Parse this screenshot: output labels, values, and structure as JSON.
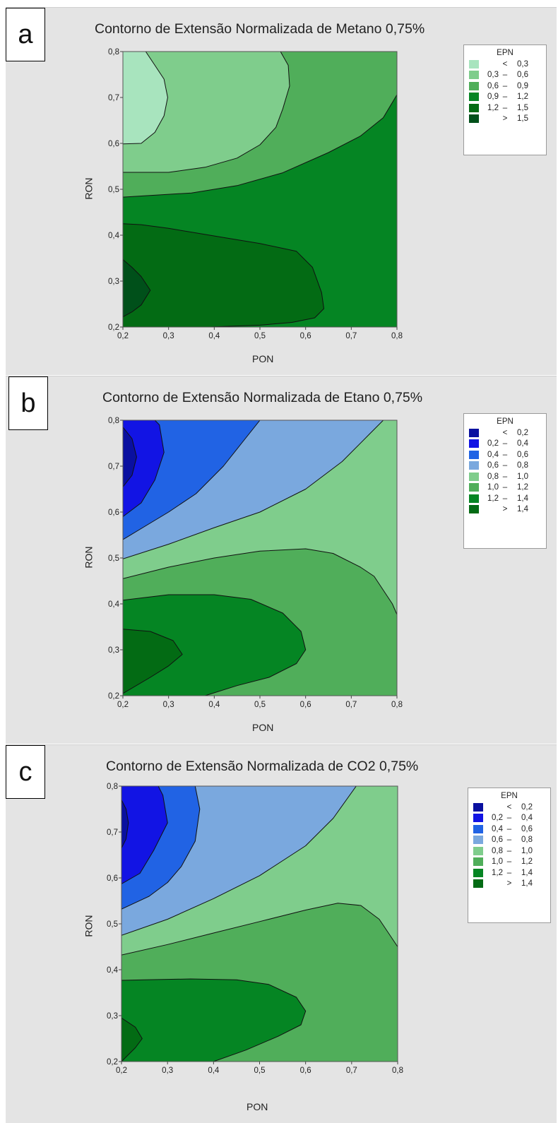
{
  "chart_data": [
    {
      "panel_label": "a",
      "type": "contour",
      "title": "Contorno de Extensão Normalizada de Metano 0,75%",
      "xlabel": "PON",
      "ylabel": "RON",
      "xlim": [
        0.2,
        0.8
      ],
      "ylim": [
        0.2,
        0.8
      ],
      "xticks": [
        "0,2",
        "0,3",
        "0,4",
        "0,5",
        "0,6",
        "0,7",
        "0,8"
      ],
      "yticks": [
        "0,2",
        "0,3",
        "0,4",
        "0,5",
        "0,6",
        "0,7",
        "0,8"
      ],
      "legend_title": "EPN",
      "legend_position": "right",
      "levels": [
        {
          "low": "",
          "op": "<",
          "high": "0,3",
          "color": "#a8e4be"
        },
        {
          "low": "0,3",
          "op": "–",
          "high": "0,6",
          "color": "#7fcd8c"
        },
        {
          "low": "0,6",
          "op": "–",
          "high": "0,9",
          "color": "#50ae5a"
        },
        {
          "low": "0,9",
          "op": "–",
          "high": "1,2",
          "color": "#058523"
        },
        {
          "low": "1,2",
          "op": "–",
          "high": "1,5",
          "color": "#036b14"
        },
        {
          "low": "",
          "op": ">",
          "high": "1,5",
          "color": "#00501a"
        }
      ],
      "regions": [
        {
          "level": 2,
          "poly": [
            [
              0.2,
              0.483
            ],
            [
              0.8,
              0.483
            ],
            [
              0.8,
              0.8
            ],
            [
              0.2,
              0.8
            ]
          ]
        },
        {
          "level": 3,
          "poly": [
            [
              0.2,
              0.2
            ],
            [
              0.8,
              0.2
            ],
            [
              0.8,
              0.706
            ],
            [
              0.77,
              0.656
            ],
            [
              0.72,
              0.616
            ],
            [
              0.65,
              0.58
            ],
            [
              0.55,
              0.536
            ],
            [
              0.45,
              0.508
            ],
            [
              0.35,
              0.492
            ],
            [
              0.25,
              0.486
            ],
            [
              0.2,
              0.483
            ]
          ]
        },
        {
          "level": 1,
          "poly": [
            [
              0.2,
              0.537
            ],
            [
              0.3,
              0.537
            ],
            [
              0.38,
              0.548
            ],
            [
              0.45,
              0.568
            ],
            [
              0.5,
              0.597
            ],
            [
              0.535,
              0.635
            ],
            [
              0.55,
              0.675
            ],
            [
              0.565,
              0.725
            ],
            [
              0.562,
              0.77
            ],
            [
              0.545,
              0.8
            ],
            [
              0.2,
              0.8
            ]
          ]
        },
        {
          "level": 0,
          "poly": [
            [
              0.2,
              0.599
            ],
            [
              0.24,
              0.6
            ],
            [
              0.27,
              0.624
            ],
            [
              0.29,
              0.66
            ],
            [
              0.298,
              0.7
            ],
            [
              0.29,
              0.74
            ],
            [
              0.27,
              0.77
            ],
            [
              0.25,
              0.8
            ],
            [
              0.2,
              0.8
            ]
          ]
        },
        {
          "level": 4,
          "poly": [
            [
              0.2,
              0.2
            ],
            [
              0.39,
              0.2
            ],
            [
              0.5,
              0.204
            ],
            [
              0.57,
              0.21
            ],
            [
              0.62,
              0.22
            ],
            [
              0.64,
              0.24
            ],
            [
              0.635,
              0.275
            ],
            [
              0.615,
              0.33
            ],
            [
              0.58,
              0.365
            ],
            [
              0.5,
              0.382
            ],
            [
              0.42,
              0.395
            ],
            [
              0.36,
              0.405
            ],
            [
              0.3,
              0.415
            ],
            [
              0.24,
              0.423
            ],
            [
              0.2,
              0.425
            ]
          ]
        },
        {
          "level": 5,
          "poly": [
            [
              0.2,
              0.222
            ],
            [
              0.22,
              0.233
            ],
            [
              0.24,
              0.248
            ],
            [
              0.26,
              0.28
            ],
            [
              0.24,
              0.31
            ],
            [
              0.22,
              0.33
            ],
            [
              0.2,
              0.347
            ]
          ]
        }
      ]
    },
    {
      "panel_label": "b",
      "type": "contour",
      "title": "Contorno de Extensão Normalizada de Etano 0,75%",
      "xlabel": "PON",
      "ylabel": "RON",
      "xlim": [
        0.2,
        0.8
      ],
      "ylim": [
        0.2,
        0.8
      ],
      "xticks": [
        "0,2",
        "0,3",
        "0,4",
        "0,5",
        "0,6",
        "0,7",
        "0,8"
      ],
      "yticks": [
        "0,2",
        "0,3",
        "0,4",
        "0,5",
        "0,6",
        "0,7",
        "0,8"
      ],
      "legend_title": "EPN",
      "legend_position": "right",
      "levels": [
        {
          "low": "",
          "op": "<",
          "high": "0,2",
          "color": "#0a10a0"
        },
        {
          "low": "0,2",
          "op": "–",
          "high": "0,4",
          "color": "#1214e4"
        },
        {
          "low": "0,4",
          "op": "–",
          "high": "0,6",
          "color": "#2163e4"
        },
        {
          "low": "0,6",
          "op": "–",
          "high": "0,8",
          "color": "#7aa8de"
        },
        {
          "low": "0,8",
          "op": "–",
          "high": "1,0",
          "color": "#7fcd8c"
        },
        {
          "low": "1,0",
          "op": "–",
          "high": "1,2",
          "color": "#50ae5a"
        },
        {
          "low": "1,2",
          "op": "–",
          "high": "1,4",
          "color": "#058523"
        },
        {
          "low": "",
          "op": ">",
          "high": "1,4",
          "color": "#036b14"
        }
      ],
      "regions": [
        {
          "level": 5,
          "poly": [
            [
              0.2,
              0.2
            ],
            [
              0.8,
              0.2
            ],
            [
              0.8,
              0.8
            ],
            [
              0.2,
              0.8
            ]
          ]
        },
        {
          "level": 4,
          "poly": [
            [
              0.2,
              0.455
            ],
            [
              0.3,
              0.48
            ],
            [
              0.4,
              0.5
            ],
            [
              0.5,
              0.515
            ],
            [
              0.6,
              0.52
            ],
            [
              0.66,
              0.51
            ],
            [
              0.72,
              0.48
            ],
            [
              0.75,
              0.46
            ],
            [
              0.77,
              0.43
            ],
            [
              0.79,
              0.4
            ],
            [
              0.8,
              0.377
            ],
            [
              0.8,
              0.8
            ],
            [
              0.2,
              0.8
            ]
          ]
        },
        {
          "level": 3,
          "poly": [
            [
              0.2,
              0.498
            ],
            [
              0.3,
              0.53
            ],
            [
              0.4,
              0.566
            ],
            [
              0.5,
              0.6
            ],
            [
              0.6,
              0.65
            ],
            [
              0.68,
              0.71
            ],
            [
              0.74,
              0.77
            ],
            [
              0.77,
              0.8
            ],
            [
              0.2,
              0.8
            ]
          ]
        },
        {
          "level": 2,
          "poly": [
            [
              0.2,
              0.54
            ],
            [
              0.25,
              0.57
            ],
            [
              0.3,
              0.6
            ],
            [
              0.36,
              0.64
            ],
            [
              0.42,
              0.7
            ],
            [
              0.46,
              0.75
            ],
            [
              0.5,
              0.8
            ],
            [
              0.2,
              0.8
            ]
          ]
        },
        {
          "level": 1,
          "poly": [
            [
              0.2,
              0.59
            ],
            [
              0.24,
              0.62
            ],
            [
              0.27,
              0.67
            ],
            [
              0.29,
              0.73
            ],
            [
              0.28,
              0.79
            ],
            [
              0.27,
              0.8
            ],
            [
              0.2,
              0.8
            ]
          ]
        },
        {
          "level": 0,
          "poly": [
            [
              0.2,
              0.655
            ],
            [
              0.22,
              0.68
            ],
            [
              0.23,
              0.72
            ],
            [
              0.22,
              0.76
            ],
            [
              0.2,
              0.785
            ]
          ]
        },
        {
          "level": 6,
          "poly": [
            [
              0.2,
              0.2
            ],
            [
              0.38,
              0.2
            ],
            [
              0.45,
              0.222
            ],
            [
              0.52,
              0.24
            ],
            [
              0.58,
              0.27
            ],
            [
              0.6,
              0.3
            ],
            [
              0.59,
              0.34
            ],
            [
              0.55,
              0.38
            ],
            [
              0.48,
              0.41
            ],
            [
              0.4,
              0.42
            ],
            [
              0.3,
              0.42
            ],
            [
              0.2,
              0.408
            ]
          ]
        },
        {
          "level": 7,
          "poly": [
            [
              0.2,
              0.205
            ],
            [
              0.26,
              0.24
            ],
            [
              0.3,
              0.265
            ],
            [
              0.33,
              0.29
            ],
            [
              0.31,
              0.32
            ],
            [
              0.26,
              0.34
            ],
            [
              0.2,
              0.345
            ]
          ]
        }
      ]
    },
    {
      "panel_label": "c",
      "type": "contour",
      "title": "Contorno de Extensão Normalizada de CO2 0,75%",
      "xlabel": "PON",
      "ylabel": "RON",
      "xlim": [
        0.2,
        0.8
      ],
      "ylim": [
        0.2,
        0.8
      ],
      "xticks": [
        "0,2",
        "0,3",
        "0,4",
        "0,5",
        "0,6",
        "0,7",
        "0,8"
      ],
      "yticks": [
        "0,2",
        "0,3",
        "0,4",
        "0,5",
        "0,6",
        "0,7",
        "0,8"
      ],
      "legend_title": "EPN",
      "legend_position": "right",
      "levels": [
        {
          "low": "",
          "op": "<",
          "high": "0,2",
          "color": "#0a10a0"
        },
        {
          "low": "0,2",
          "op": "–",
          "high": "0,4",
          "color": "#1214e4"
        },
        {
          "low": "0,4",
          "op": "–",
          "high": "0,6",
          "color": "#2163e4"
        },
        {
          "low": "0,6",
          "op": "–",
          "high": "0,8",
          "color": "#7aa8de"
        },
        {
          "low": "0,8",
          "op": "–",
          "high": "1,0",
          "color": "#7fcd8c"
        },
        {
          "low": "1,0",
          "op": "–",
          "high": "1,2",
          "color": "#50ae5a"
        },
        {
          "low": "1,2",
          "op": "–",
          "high": "1,4",
          "color": "#058523"
        },
        {
          "low": "",
          "op": ">",
          "high": "1,4",
          "color": "#036b14"
        }
      ],
      "regions": [
        {
          "level": 5,
          "poly": [
            [
              0.2,
              0.2
            ],
            [
              0.8,
              0.2
            ],
            [
              0.8,
              0.8
            ],
            [
              0.2,
              0.8
            ]
          ]
        },
        {
          "level": 4,
          "poly": [
            [
              0.2,
              0.432
            ],
            [
              0.3,
              0.455
            ],
            [
              0.4,
              0.48
            ],
            [
              0.5,
              0.505
            ],
            [
              0.6,
              0.53
            ],
            [
              0.67,
              0.545
            ],
            [
              0.72,
              0.54
            ],
            [
              0.76,
              0.51
            ],
            [
              0.78,
              0.48
            ],
            [
              0.8,
              0.45
            ],
            [
              0.8,
              0.8
            ],
            [
              0.2,
              0.8
            ]
          ]
        },
        {
          "level": 3,
          "poly": [
            [
              0.2,
              0.475
            ],
            [
              0.3,
              0.51
            ],
            [
              0.4,
              0.555
            ],
            [
              0.5,
              0.605
            ],
            [
              0.6,
              0.67
            ],
            [
              0.66,
              0.73
            ],
            [
              0.71,
              0.8
            ],
            [
              0.2,
              0.8
            ]
          ]
        },
        {
          "level": 2,
          "poly": [
            [
              0.2,
              0.532
            ],
            [
              0.26,
              0.56
            ],
            [
              0.3,
              0.59
            ],
            [
              0.33,
              0.625
            ],
            [
              0.36,
              0.68
            ],
            [
              0.37,
              0.75
            ],
            [
              0.36,
              0.8
            ],
            [
              0.2,
              0.8
            ]
          ]
        },
        {
          "level": 1,
          "poly": [
            [
              0.2,
              0.587
            ],
            [
              0.24,
              0.61
            ],
            [
              0.27,
              0.66
            ],
            [
              0.3,
              0.72
            ],
            [
              0.29,
              0.78
            ],
            [
              0.28,
              0.8
            ],
            [
              0.2,
              0.8
            ]
          ]
        },
        {
          "level": 0,
          "poly": [
            [
              0.2,
              0.665
            ],
            [
              0.21,
              0.685
            ],
            [
              0.215,
              0.72
            ],
            [
              0.21,
              0.75
            ],
            [
              0.2,
              0.77
            ]
          ]
        },
        {
          "level": 6,
          "poly": [
            [
              0.2,
              0.2
            ],
            [
              0.4,
              0.2
            ],
            [
              0.47,
              0.225
            ],
            [
              0.54,
              0.255
            ],
            [
              0.59,
              0.28
            ],
            [
              0.6,
              0.31
            ],
            [
              0.58,
              0.34
            ],
            [
              0.52,
              0.368
            ],
            [
              0.45,
              0.378
            ],
            [
              0.35,
              0.38
            ],
            [
              0.25,
              0.378
            ],
            [
              0.2,
              0.377
            ]
          ]
        },
        {
          "level": 7,
          "poly": [
            [
              0.2,
              0.2
            ],
            [
              0.23,
              0.23
            ],
            [
              0.245,
              0.25
            ],
            [
              0.23,
              0.275
            ],
            [
              0.2,
              0.295
            ]
          ]
        }
      ]
    }
  ]
}
